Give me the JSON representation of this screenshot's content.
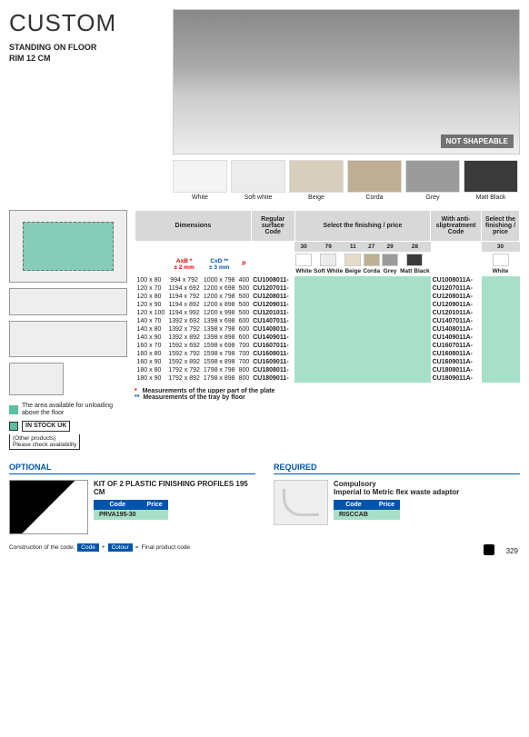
{
  "header": {
    "title": "CUSTOM",
    "subtitle1": "STANDING ON FLOOR",
    "subtitle2": "RIM 12 CM",
    "heroBadge": "NOT SHAPEABLE"
  },
  "swatches": [
    {
      "label": "White",
      "color": "#f4f4f4"
    },
    {
      "label": "Soft white",
      "color": "#ececec"
    },
    {
      "label": "Beige",
      "color": "#d8cebd"
    },
    {
      "label": "Corda",
      "color": "#beae93"
    },
    {
      "label": "Grey",
      "color": "#9b9b9b"
    },
    {
      "label": "Matt Black",
      "color": "#3a3a3a"
    }
  ],
  "legend": {
    "unload": "The area available for unloading above the floor",
    "stock": "IN STOCK UK",
    "other": "(Other products)\nPlease check availability"
  },
  "tableHead": {
    "dims": "Dimensions",
    "regCode": "Regular surface Code",
    "selFin": "Select the finishing / price",
    "antiCode": "With anti-sliptreatment Code",
    "selFin2": "Select the finishing / price",
    "axb": "AxB *",
    "axbNote": "± 2 mm",
    "cxd": "CxD **",
    "cxdNote": "± 3 mm",
    "p": "P"
  },
  "finishCodes": [
    {
      "n": "30",
      "label": "White",
      "color": "#ffffff"
    },
    {
      "n": "79",
      "label": "Soft White",
      "color": "#ececec"
    },
    {
      "n": "11",
      "label": "Beige",
      "color": "#e4dcc7"
    },
    {
      "n": "27",
      "label": "Corda",
      "color": "#beae93"
    },
    {
      "n": "29",
      "label": "Grey",
      "color": "#9b9b9b"
    },
    {
      "n": "28",
      "label": "Matt Black",
      "color": "#3a3a3a"
    }
  ],
  "finishCode2": {
    "n": "30",
    "label": "White",
    "color": "#ffffff"
  },
  "rows": [
    {
      "dim": "100 x 80",
      "axb": "994 x 792",
      "cxd": "1000 x 798",
      "p": "400",
      "c1": "CU1008011-",
      "c2": "CU1008011A-"
    },
    {
      "dim": "120 x 70",
      "axb": "1194 x 692",
      "cxd": "1200 x 698",
      "p": "500",
      "c1": "CU1207011-",
      "c2": "CU1207011A-"
    },
    {
      "dim": "120 x 80",
      "axb": "1194 x 792",
      "cxd": "1200 x 798",
      "p": "500",
      "c1": "CU1208011-",
      "c2": "CU1208011A-"
    },
    {
      "dim": "120 x 90",
      "axb": "1194 x 892",
      "cxd": "1200 x 898",
      "p": "500",
      "c1": "CU1209011-",
      "c2": "CU1209011A-"
    },
    {
      "dim": "120 x 100",
      "axb": "1194 x 992",
      "cxd": "1200 x 998",
      "p": "500",
      "c1": "CU1201011-",
      "c2": "CU1201011A-"
    },
    {
      "dim": "140 x 70",
      "axb": "1392 x 692",
      "cxd": "1398 x 698",
      "p": "600",
      "c1": "CU1407011-",
      "c2": "CU1407011A-"
    },
    {
      "dim": "140 x 80",
      "axb": "1392 x 792",
      "cxd": "1398 x 798",
      "p": "600",
      "c1": "CU1408011-",
      "c2": "CU1408011A-"
    },
    {
      "dim": "140 x 90",
      "axb": "1392 x 892",
      "cxd": "1398 x 898",
      "p": "600",
      "c1": "CU1409011-",
      "c2": "CU1409011A-"
    },
    {
      "dim": "160 x 70",
      "axb": "1592 x 692",
      "cxd": "1598 x 698",
      "p": "700",
      "c1": "CU1607011-",
      "c2": "CU1607011A-"
    },
    {
      "dim": "160 x 80",
      "axb": "1592 x 792",
      "cxd": "1598 x 798",
      "p": "700",
      "c1": "CU1608011-",
      "c2": "CU1608011A-"
    },
    {
      "dim": "160 x 90",
      "axb": "1592 x 892",
      "cxd": "1598 x 898",
      "p": "700",
      "c1": "CU1609011-",
      "c2": "CU1609011A-"
    },
    {
      "dim": "180 x 80",
      "axb": "1792 x 792",
      "cxd": "1798 x 798",
      "p": "800",
      "c1": "CU1808011-",
      "c2": "CU1808011A-"
    },
    {
      "dim": "180 x 90",
      "axb": "1792 x 892",
      "cxd": "1798 x 898",
      "p": "800",
      "c1": "CU1809011-",
      "c2": "CU1809011A-"
    }
  ],
  "footnotes": {
    "f1": "Measurements of the upper part of the plate",
    "f2": "Measurements of the tray by floor"
  },
  "optional": {
    "heading": "OPTIONAL",
    "title": "KIT OF 2 PLASTIC FINISHING PROFILES 195 CM",
    "codeLabel": "Code",
    "priceLabel": "Price",
    "code": "PRVA195-30"
  },
  "required": {
    "heading": "REQUIRED",
    "comp": "Compulsory",
    "title": "Imperial to Metric flex waste adaptor",
    "codeLabel": "Code",
    "priceLabel": "Price",
    "code": "RISCCAB"
  },
  "construction": {
    "label": "Construction of the code:",
    "code": "Code",
    "plus": "+",
    "colour": "Colour",
    "eq": "=",
    "final": "Final product code"
  },
  "pageNum": "329"
}
